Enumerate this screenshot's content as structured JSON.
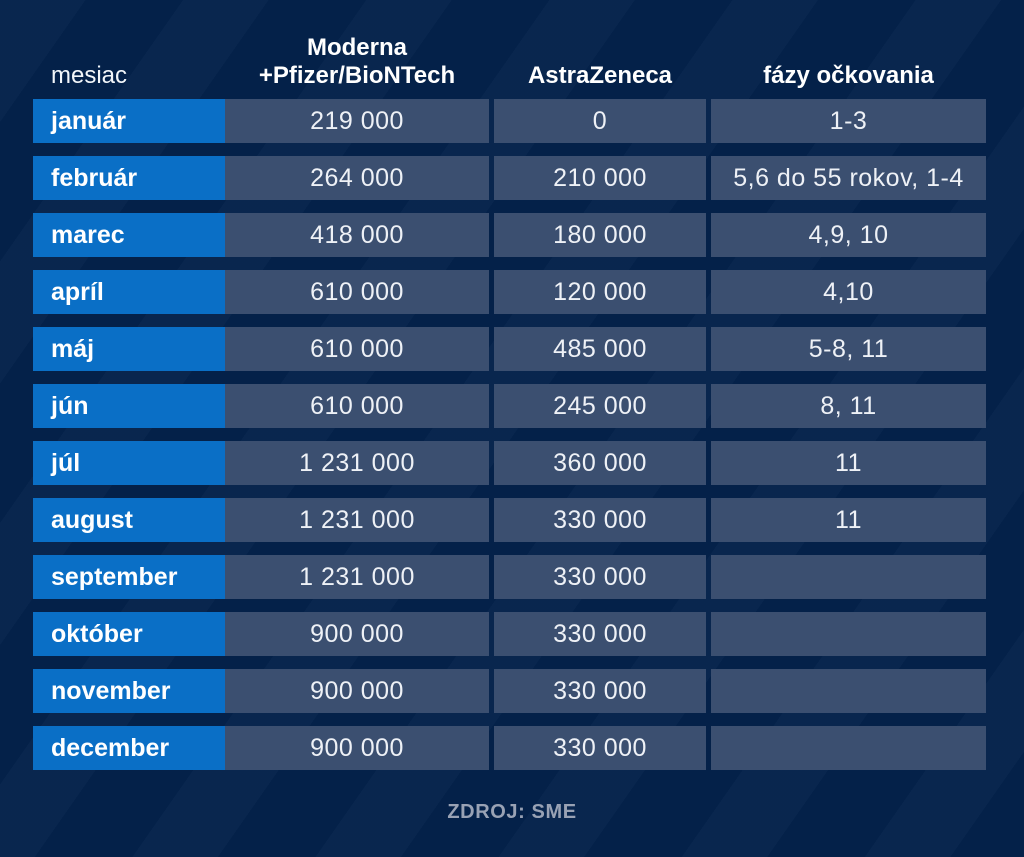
{
  "chart_data": {
    "type": "table",
    "header": {
      "month": "mesiac",
      "moderna_line1": "Moderna",
      "moderna_line2": "+Pfizer/BioNTech",
      "astrazeneca": "AstraZeneca",
      "fazy": "fázy očkovania"
    },
    "columns": [
      "mesiac",
      "Moderna +Pfizer/BioNTech",
      "AstraZeneca",
      "fázy očkovania"
    ],
    "rows": [
      {
        "month": "január",
        "moderna_pfizer": "219 000",
        "astrazeneca": "0",
        "fazy": "1-3"
      },
      {
        "month": "február",
        "moderna_pfizer": "264 000",
        "astrazeneca": "210 000",
        "fazy": "5,6 do 55 rokov, 1-4"
      },
      {
        "month": "marec",
        "moderna_pfizer": "418 000",
        "astrazeneca": "180 000",
        "fazy": "4,9, 10"
      },
      {
        "month": "apríl",
        "moderna_pfizer": "610 000",
        "astrazeneca": "120 000",
        "fazy": "4,10"
      },
      {
        "month": "máj",
        "moderna_pfizer": "610 000",
        "astrazeneca": "485 000",
        "fazy": "5-8, 11"
      },
      {
        "month": "jún",
        "moderna_pfizer": "610 000",
        "astrazeneca": "245 000",
        "fazy": "8, 11"
      },
      {
        "month": "júl",
        "moderna_pfizer": "1 231 000",
        "astrazeneca": "360 000",
        "fazy": "11"
      },
      {
        "month": "august",
        "moderna_pfizer": "1 231 000",
        "astrazeneca": "330 000",
        "fazy": "11"
      },
      {
        "month": "september",
        "moderna_pfizer": "1 231 000",
        "astrazeneca": "330 000",
        "fazy": ""
      },
      {
        "month": "október",
        "moderna_pfizer": "900 000",
        "astrazeneca": "330 000",
        "fazy": ""
      },
      {
        "month": "november",
        "moderna_pfizer": "900 000",
        "astrazeneca": "330 000",
        "fazy": ""
      },
      {
        "month": "december",
        "moderna_pfizer": "900 000",
        "astrazeneca": "330 000",
        "fazy": ""
      }
    ],
    "source": "ZDROJ: SME"
  },
  "footer": {
    "source_label": "ZDROJ: SME"
  },
  "colors": {
    "background": "#04224b",
    "month_cell_blue": "#0a6fc6",
    "value_cell_slate": "#3b4f70",
    "header_text": "#ffffff",
    "value_text": "#eef1f6",
    "source_text": "#99a2b4"
  }
}
